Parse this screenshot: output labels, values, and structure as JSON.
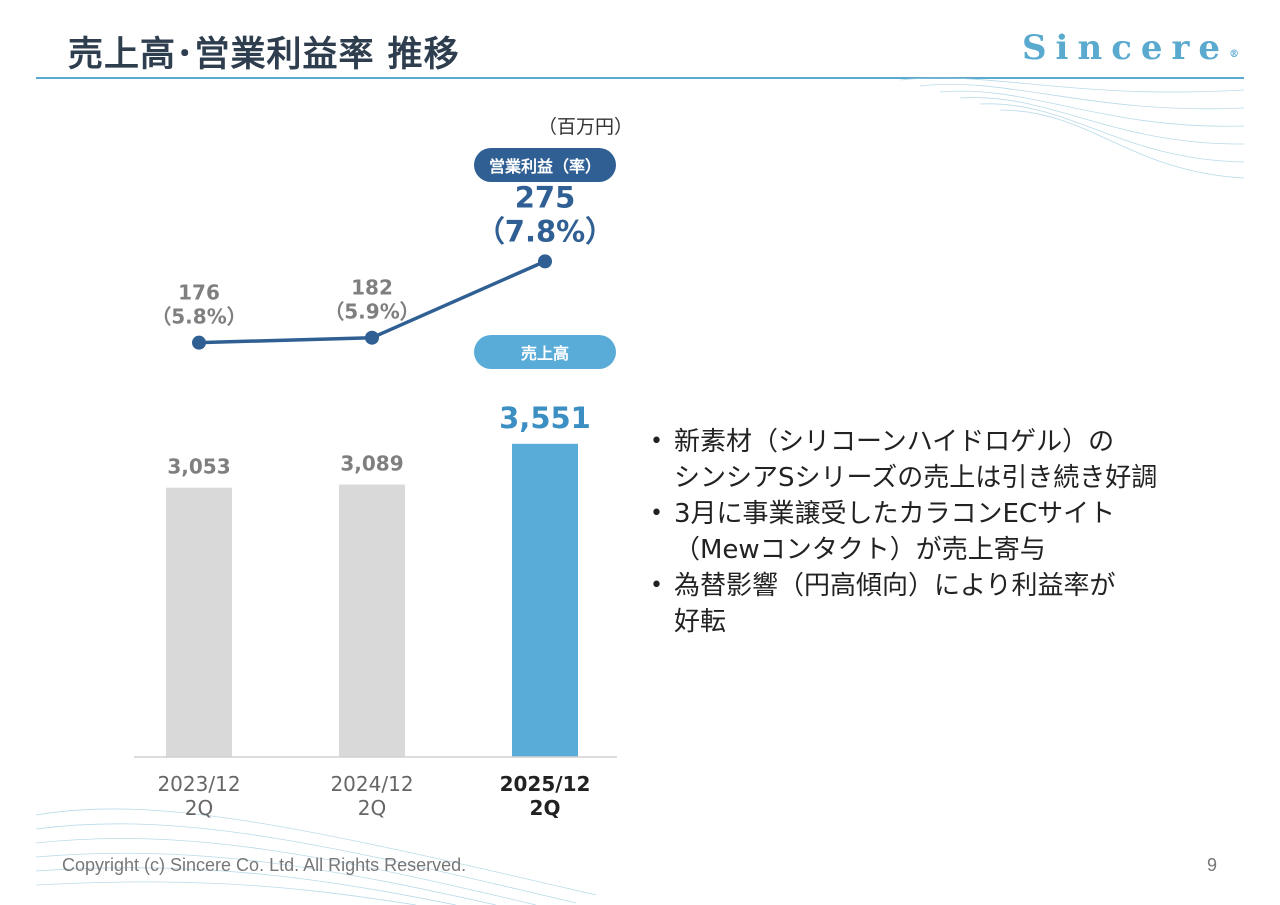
{
  "slide": {
    "title": "売上高･営業利益率 推移",
    "brand": "Sincere",
    "brand_mark": "®",
    "footer": "Copyright (c) Sincere Co. Ltd. All Rights Reserved.",
    "page_number": "9"
  },
  "colors": {
    "title": "#2f3e4e",
    "accent": "#5aa9cf",
    "bar_past": "#d9d9d9",
    "bar_current": "#5aacd8",
    "line": "#2f5f93",
    "label_past": "#7f7f7f",
    "label_sales_current": "#3b8fc2",
    "label_op_current": "#2f5f93"
  },
  "chart_data": {
    "type": "bar",
    "unit_label": "（百万円）",
    "categories": [
      {
        "line1": "2023/12",
        "line2": "2Q",
        "highlight": false
      },
      {
        "line1": "2024/12",
        "line2": "2Q",
        "highlight": false
      },
      {
        "line1": "2025/12",
        "line2": "2Q",
        "highlight": true
      }
    ],
    "series": [
      {
        "name": "売上高",
        "type": "bar",
        "values": [
          3053,
          3089,
          3551
        ],
        "labels": [
          "3,053",
          "3,089",
          "3,551"
        ]
      },
      {
        "name": "営業利益（率）",
        "type": "line",
        "values": [
          176,
          182,
          275
        ],
        "labels": [
          "176",
          "182",
          "275"
        ],
        "rates": [
          "（5.8%）",
          "（5.9%）",
          "（7.8%）"
        ]
      }
    ],
    "grid": false
  },
  "bullets": [
    [
      "新素材（シリコーンハイドロゲル）の",
      "シンシアSシリーズの売上は引き続き好調"
    ],
    [
      "3月に事業譲受したカラコンECサイト",
      "（Mewコンタクト）が売上寄与"
    ],
    [
      "為替影響（円高傾向）により利益率が",
      "好転"
    ]
  ]
}
